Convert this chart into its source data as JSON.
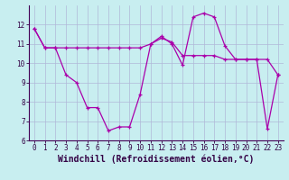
{
  "line1_x": [
    0,
    1,
    2,
    3,
    4,
    5,
    6,
    7,
    8,
    9,
    10,
    11,
    12,
    13,
    14,
    15,
    16,
    17,
    18,
    19,
    20,
    21,
    22,
    23
  ],
  "line1_y": [
    11.8,
    10.8,
    10.8,
    9.4,
    9.0,
    7.7,
    7.7,
    6.5,
    6.7,
    6.7,
    8.4,
    11.0,
    11.4,
    11.0,
    9.9,
    12.4,
    12.6,
    12.4,
    10.9,
    10.2,
    10.2,
    10.2,
    6.6,
    9.4
  ],
  "line2_x": [
    0,
    1,
    2,
    3,
    4,
    5,
    6,
    7,
    8,
    9,
    10,
    11,
    12,
    13,
    14,
    15,
    16,
    17,
    18,
    19,
    20,
    21,
    22,
    23
  ],
  "line2_y": [
    11.8,
    10.8,
    10.8,
    10.8,
    10.8,
    10.8,
    10.8,
    10.8,
    10.8,
    10.8,
    10.8,
    11.0,
    11.3,
    11.1,
    10.4,
    10.4,
    10.4,
    10.4,
    10.2,
    10.2,
    10.2,
    10.2,
    10.2,
    9.4
  ],
  "line_color": "#aa00aa",
  "bg_color": "#c8eef0",
  "grid_color": "#b0b8d8",
  "xlabel": "Windchill (Refroidissement éolien,°C)",
  "ylim": [
    6,
    13
  ],
  "xlim": [
    -0.5,
    23.5
  ],
  "yticks": [
    6,
    7,
    8,
    9,
    10,
    11,
    12
  ],
  "xticks": [
    0,
    1,
    2,
    3,
    4,
    5,
    6,
    7,
    8,
    9,
    10,
    11,
    12,
    13,
    14,
    15,
    16,
    17,
    18,
    19,
    20,
    21,
    22,
    23
  ],
  "tick_fontsize": 5.5,
  "xlabel_fontsize": 7.0,
  "marker_size": 3.5,
  "lw": 0.9
}
